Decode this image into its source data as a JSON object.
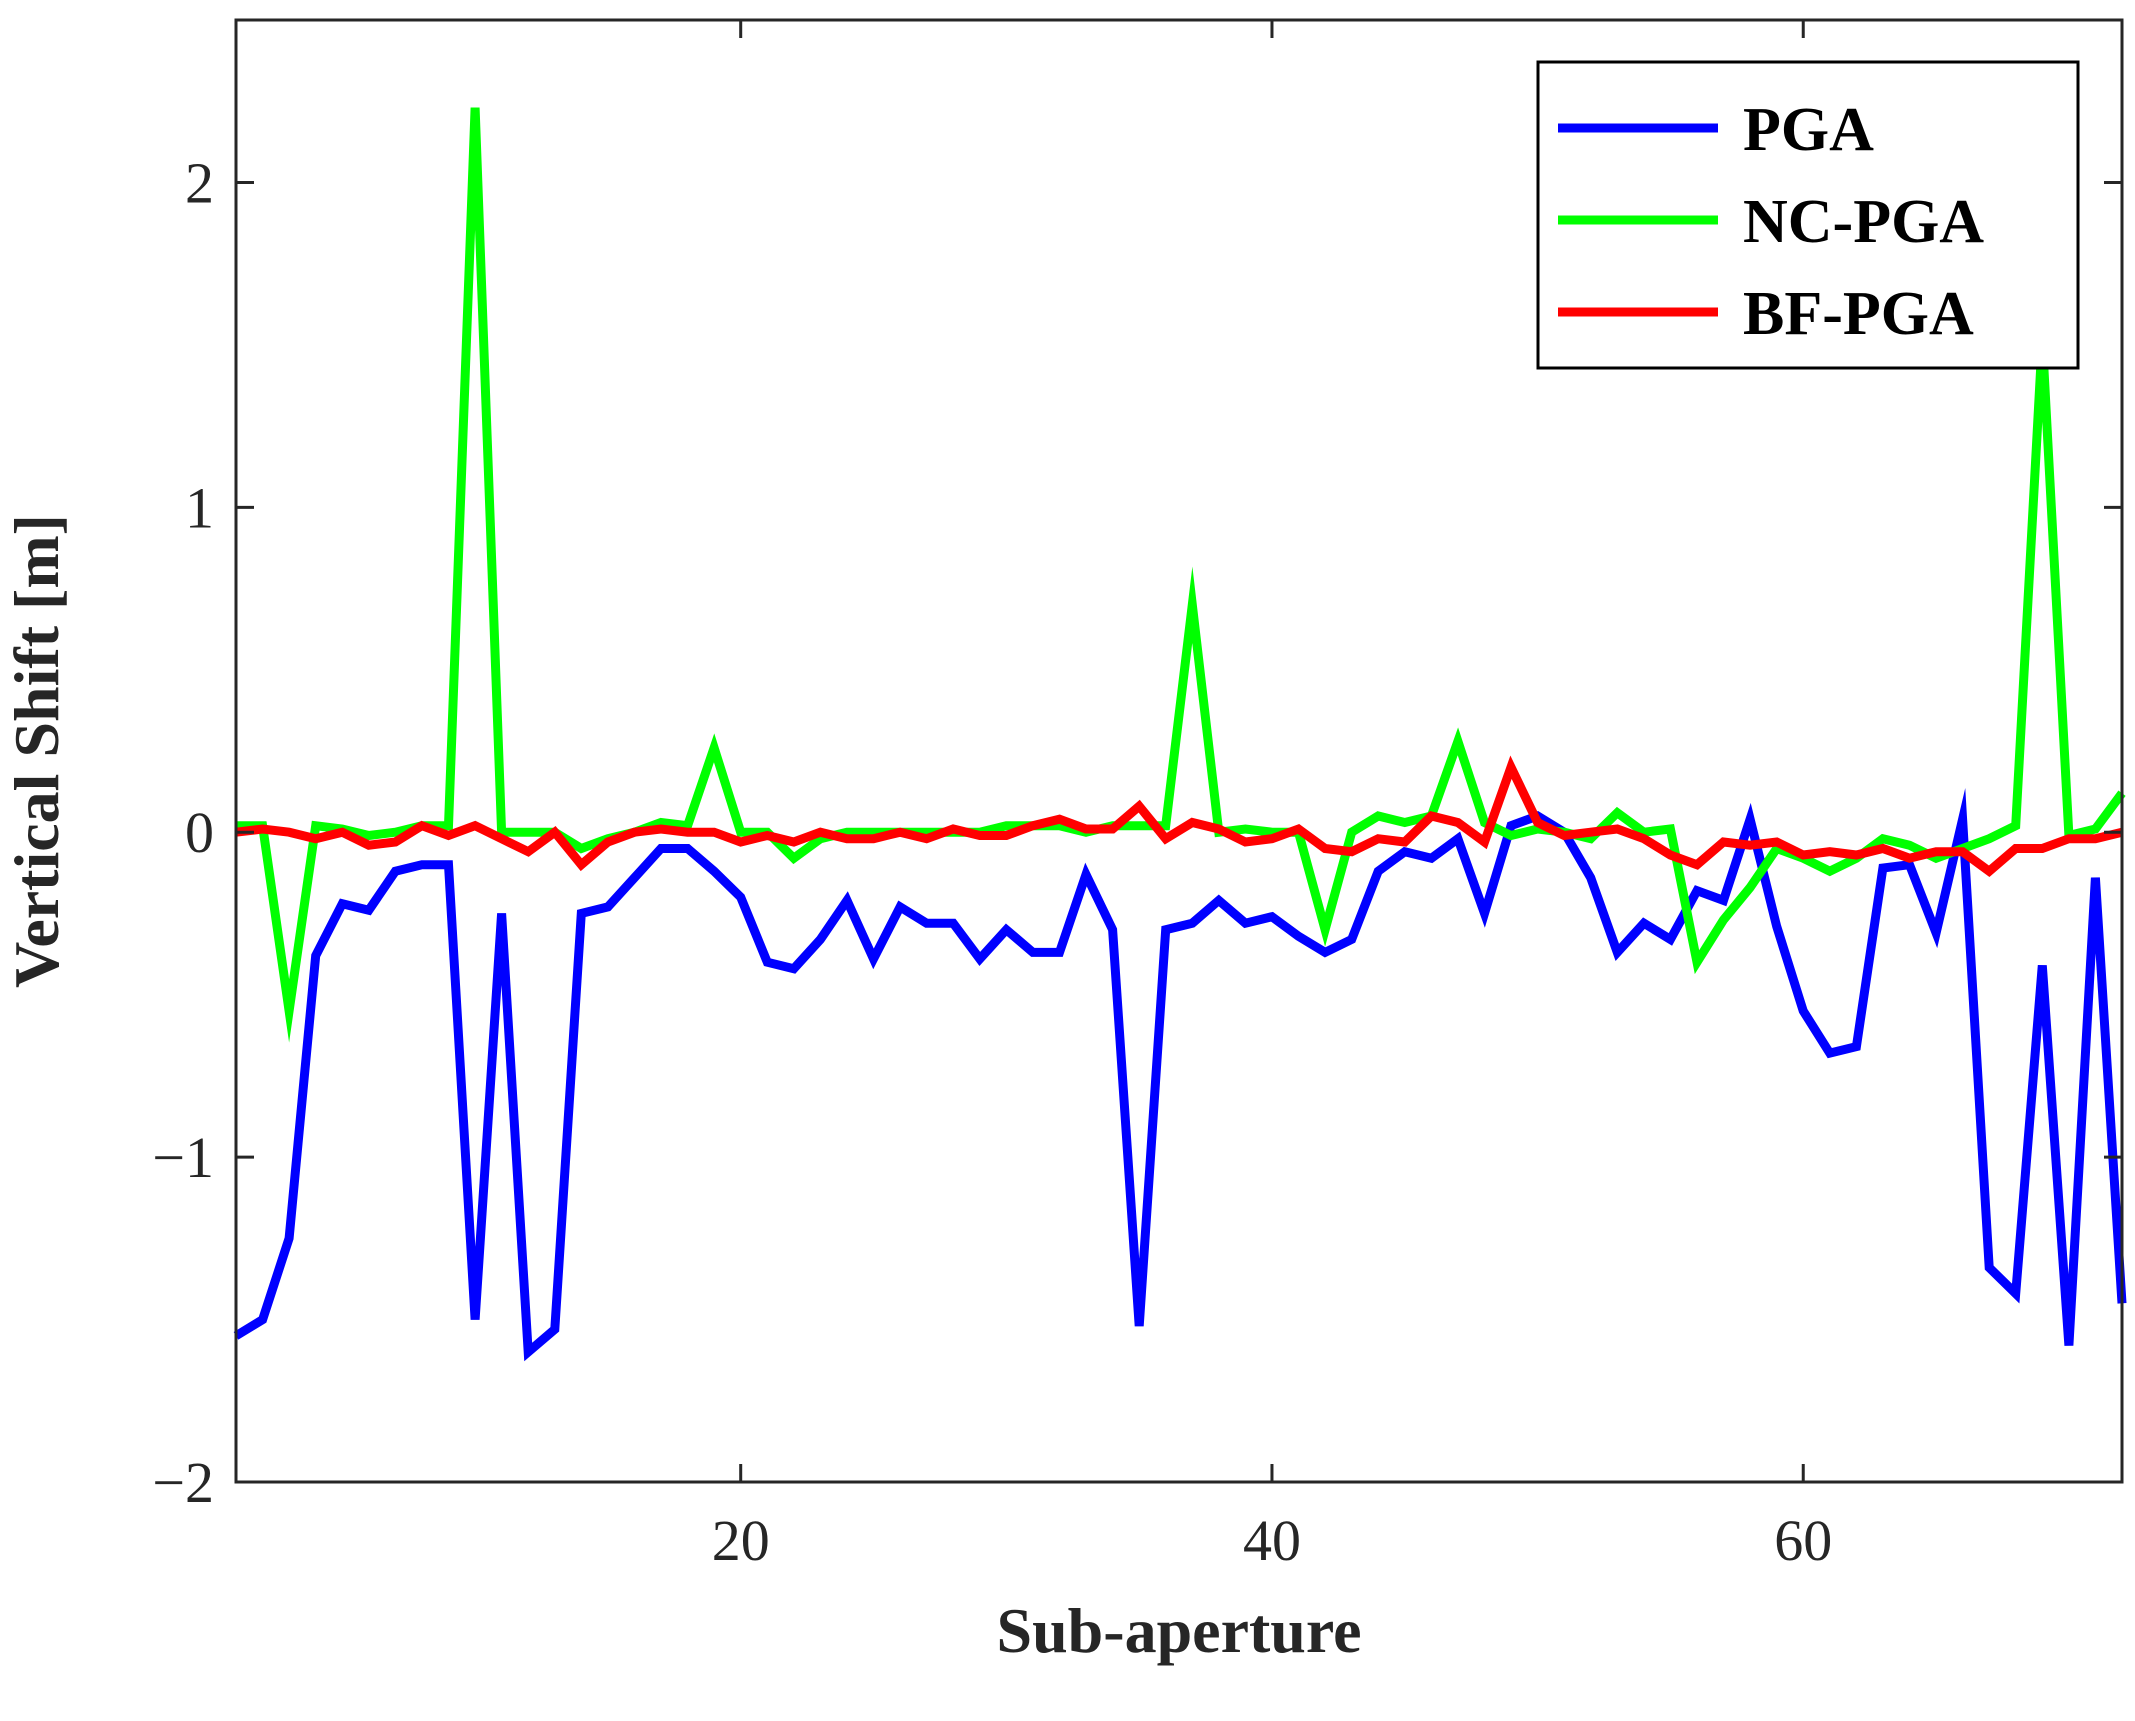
{
  "chart_data": {
    "type": "line",
    "title": "",
    "xlabel": "Sub-aperture",
    "ylabel": "Vertical Shift [m]",
    "xlim": [
      1,
      72
    ],
    "ylim": [
      -2,
      2.5
    ],
    "x_ticks": [
      20,
      40,
      60
    ],
    "x_tick_labels": [
      "20",
      "40",
      "60"
    ],
    "y_ticks": [
      -2,
      -1,
      0,
      1,
      2
    ],
    "y_tick_labels": [
      "−2",
      "−1",
      "0",
      "1",
      "2"
    ],
    "grid": false,
    "legend_position": "top-right",
    "x": [
      1,
      2,
      3,
      4,
      5,
      6,
      7,
      8,
      9,
      10,
      11,
      12,
      13,
      14,
      15,
      16,
      17,
      18,
      19,
      20,
      21,
      22,
      23,
      24,
      25,
      26,
      27,
      28,
      29,
      30,
      31,
      32,
      33,
      34,
      35,
      36,
      37,
      38,
      39,
      40,
      41,
      42,
      43,
      44,
      45,
      46,
      47,
      48,
      49,
      50,
      51,
      52,
      53,
      54,
      55,
      56,
      57,
      58,
      59,
      60,
      61,
      62,
      63,
      64,
      65,
      66,
      67,
      68,
      69,
      70,
      71,
      72
    ],
    "series": [
      {
        "name": "PGA",
        "color": "#0000ff",
        "values": [
          -1.55,
          -1.5,
          -1.25,
          -0.38,
          -0.22,
          -0.24,
          -0.12,
          -0.1,
          -0.1,
          -1.5,
          -0.25,
          -1.6,
          -1.53,
          -0.25,
          -0.23,
          -0.14,
          -0.05,
          -0.05,
          -0.12,
          -0.2,
          -0.4,
          -0.42,
          -0.33,
          -0.21,
          -0.39,
          -0.23,
          -0.28,
          -0.28,
          -0.39,
          -0.3,
          -0.37,
          -0.37,
          -0.13,
          -0.3,
          -1.52,
          -0.3,
          -0.28,
          -0.21,
          -0.28,
          -0.26,
          -0.32,
          -0.37,
          -0.33,
          -0.12,
          -0.06,
          -0.08,
          -0.02,
          -0.25,
          0.02,
          0.05,
          0,
          -0.14,
          -0.37,
          -0.28,
          -0.33,
          -0.18,
          -0.21,
          0.04,
          -0.29,
          -0.55,
          -0.68,
          -0.66,
          -0.11,
          -0.1,
          -0.31,
          0.04,
          -1.34,
          -1.42,
          -0.41,
          -1.58,
          -0.14,
          -1.45
        ]
      },
      {
        "name": "NC-PGA",
        "color": "#00ff00",
        "values": [
          0.02,
          0.02,
          -0.55,
          0.02,
          0.01,
          -0.01,
          0,
          0.02,
          0.02,
          2.23,
          0,
          0,
          0,
          -0.05,
          -0.02,
          0,
          0.03,
          0.02,
          0.26,
          0,
          0,
          -0.08,
          -0.02,
          0,
          0,
          0,
          0,
          0,
          0,
          0.02,
          0.02,
          0.02,
          0,
          0.02,
          0.02,
          0.02,
          0.7,
          0,
          0.01,
          0,
          0,
          -0.3,
          0,
          0.05,
          0.03,
          0.05,
          0.28,
          0.03,
          -0.01,
          0.01,
          0,
          -0.02,
          0.06,
          0,
          0.01,
          -0.4,
          -0.27,
          -0.17,
          -0.05,
          -0.08,
          -0.12,
          -0.08,
          -0.02,
          -0.04,
          -0.08,
          -0.05,
          -0.02,
          0.02,
          1.52,
          -0.01,
          0.01,
          0.12
        ]
      },
      {
        "name": "BF-PGA",
        "color": "#ff0000",
        "values": [
          0,
          0.01,
          0,
          -0.02,
          0,
          -0.04,
          -0.03,
          0.02,
          -0.01,
          0.02,
          -0.02,
          -0.06,
          0,
          -0.1,
          -0.03,
          0,
          0.01,
          0,
          0,
          -0.03,
          -0.01,
          -0.03,
          0,
          -0.02,
          -0.02,
          0,
          -0.02,
          0.01,
          -0.01,
          -0.01,
          0.02,
          0.04,
          0.01,
          0.01,
          0.08,
          -0.02,
          0.03,
          0.01,
          -0.03,
          -0.02,
          0.01,
          -0.05,
          -0.06,
          -0.02,
          -0.03,
          0.05,
          0.03,
          -0.03,
          0.2,
          0.03,
          -0.01,
          0,
          0.01,
          -0.02,
          -0.07,
          -0.1,
          -0.03,
          -0.04,
          -0.03,
          -0.07,
          -0.06,
          -0.07,
          -0.05,
          -0.08,
          -0.06,
          -0.06,
          -0.12,
          -0.05,
          -0.05,
          -0.02,
          -0.02,
          0
        ]
      }
    ]
  }
}
